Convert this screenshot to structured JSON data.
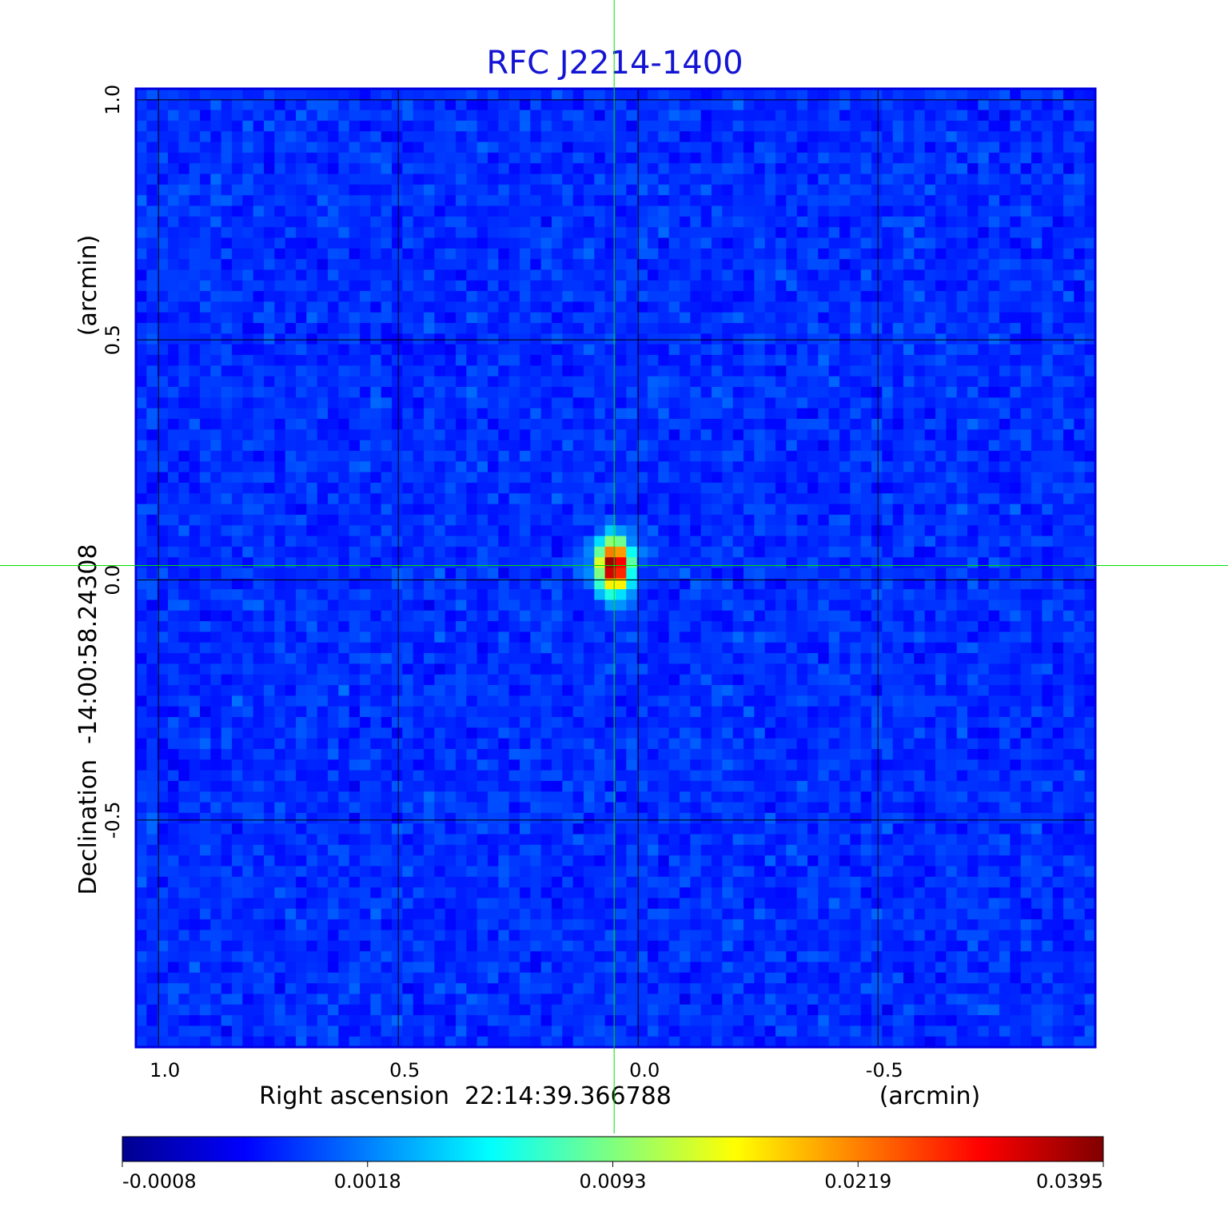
{
  "chart_data": {
    "type": "image",
    "title": "RFC J2214-1400",
    "x_label": "Right ascension  22:14:39.366788",
    "x_unit": "(arcmin)",
    "y_label": "Declination  -14:00:58.24308",
    "y_unit": "(arcmin)",
    "xlim": [
      1.047,
      -0.953
    ],
    "ylim": [
      -0.973,
      1.023
    ],
    "xticks": [
      {
        "value": 1,
        "label": "1.0"
      },
      0.5,
      {
        "value": 0,
        "label": "0.0"
      },
      -0.5
    ],
    "yticks": [
      {
        "value": 1,
        "label": "1.0"
      },
      0.5,
      {
        "value": 0,
        "label": "0.0"
      },
      -0.5
    ],
    "grid": true,
    "crosshair": {
      "x": 0.05,
      "y": 0.03,
      "color": "#00e000"
    },
    "colormap": "jet",
    "colorbar_ticks": [
      -0.0008,
      0.0018,
      0.0093,
      0.0219,
      0.0395
    ]
  }
}
